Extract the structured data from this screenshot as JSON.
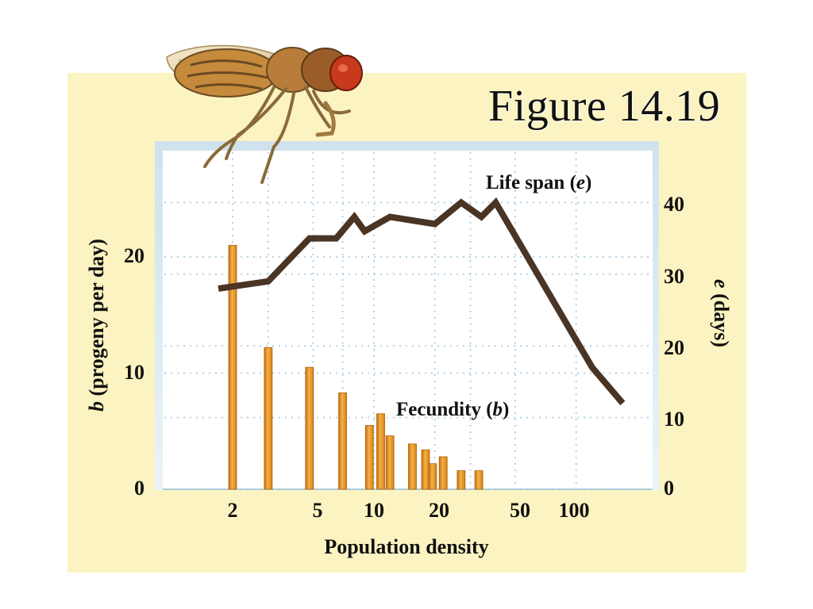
{
  "figure_label": "Figure 14.19",
  "chart_data": {
    "type": "bar+line",
    "x_axis": {
      "label": "Population density",
      "scale": "log",
      "tick_labels": [
        "2",
        "5",
        "10",
        "20",
        "50",
        "100"
      ],
      "ticks": [
        2,
        5,
        10,
        20,
        50,
        100
      ]
    },
    "y_left": {
      "label_italic": "b",
      "label_rest": " (progeny per day)",
      "range": [
        0,
        30
      ],
      "tick_labels": [
        "0",
        "10",
        "20"
      ],
      "ticks": [
        0,
        10,
        20
      ]
    },
    "y_right": {
      "label_italic": "e",
      "label_rest": " (days)",
      "range": [
        0,
        50
      ],
      "tick_labels": [
        "0",
        "10",
        "20",
        "30",
        "40"
      ],
      "ticks": [
        0,
        10,
        20,
        30,
        40
      ]
    },
    "annotations": {
      "line_text": "Life span (",
      "line_var": "e",
      "bar_text": "Fecundity (",
      "bar_var": "b",
      "close": ")"
    },
    "fecundity_bars": {
      "name": "Fecundity (b)",
      "x": [
        2,
        3,
        4.8,
        7,
        9.5,
        10.8,
        12,
        15.5,
        18,
        19.5,
        22,
        27,
        33
      ],
      "values": [
        21,
        12.2,
        10.5,
        8.3,
        5.5,
        6.5,
        4.6,
        3.9,
        3.4,
        2.2,
        2.8,
        1.6,
        1.6
      ]
    },
    "life_span_line": {
      "name": "Life span (e)",
      "x": [
        1.7,
        3,
        4.8,
        6.5,
        8,
        9,
        12,
        20,
        27,
        34,
        40,
        120,
        170
      ],
      "values": [
        28,
        29,
        35,
        35,
        38,
        36,
        38,
        37,
        40,
        38,
        40,
        17,
        12
      ]
    },
    "grid": true,
    "colors": {
      "bar_fill": "#e08a17",
      "bar_highlight": "#f2b24a",
      "line": "#4a3424",
      "plot_bg": "#ffffff",
      "panel_bg": "#fbf3c1",
      "grid": "#b5d2e4"
    }
  }
}
